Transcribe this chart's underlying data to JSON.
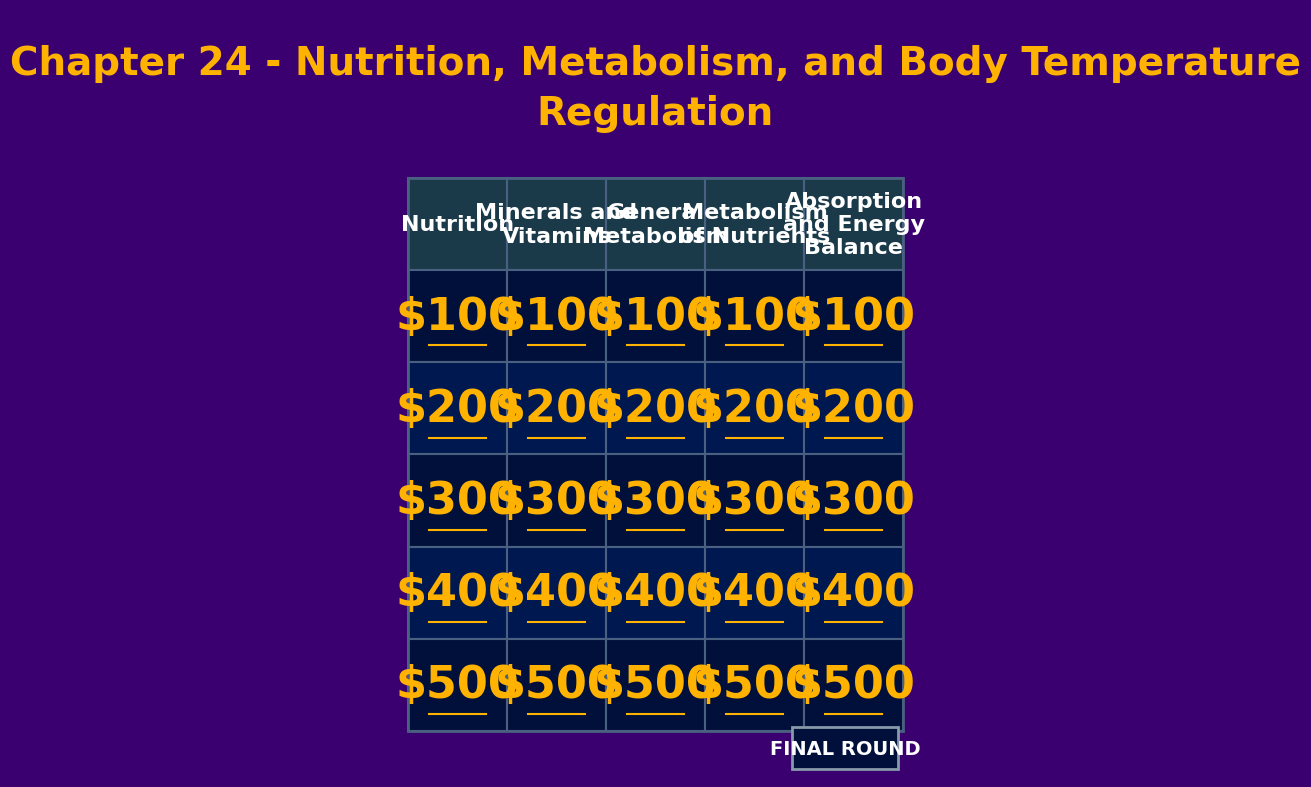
{
  "title_line1": "Chapter 24 - Nutrition, Metabolism, and Body Temperature",
  "title_line2": "Regulation",
  "title_color": "#FFB300",
  "title_fontsize": 28,
  "bg_color": "#3a0070",
  "header_bg": "#1a3a4a",
  "header_text_color": "#FFFFFF",
  "header_fontsize": 16,
  "cell_bg_dark": "#00103a",
  "cell_bg_mid": "#001850",
  "cell_text_color": "#FFB300",
  "cell_fontsize": 32,
  "grid_line_color": "#4a6080",
  "columns": [
    "Nutrition",
    "Minerals and\nVitamins",
    "General\nMetabolism",
    "Metabolism\nof Nutrients",
    "Absorption\nand Energy\nBalance"
  ],
  "rows": [
    "$100",
    "$200",
    "$300",
    "$400",
    "$500"
  ],
  "final_round_text": "FINAL ROUND",
  "final_round_bg": "#00103a",
  "final_round_text_color": "#FFFFFF",
  "final_round_border": "#8899aa"
}
